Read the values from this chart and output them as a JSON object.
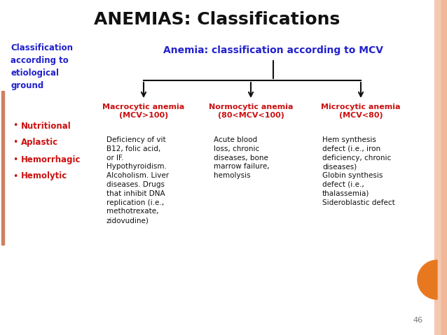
{
  "title": "ANEMIAS: Classifications",
  "title_color": "#111111",
  "title_fontsize": 18,
  "bg_color": "#ffffff",
  "slide_bg": "#ffffff",
  "left_heading": "Classification\naccording to\netiological\nground",
  "left_heading_color": "#2222cc",
  "left_bullets": [
    "Nutritional",
    "Aplastic",
    "Hemorrhagic",
    "Hemolytic"
  ],
  "left_bullet_color": "#cc1111",
  "mcv_heading": "Anemia: classification according to MCV",
  "mcv_heading_color": "#2222cc",
  "col_headings": [
    "Macrocytic anemia\n(MCV>100)",
    "Normocytic anemia\n(80<MCV<100)",
    "Microcytic anemia\n(MCV<80)"
  ],
  "col_heading_color": "#cc1111",
  "col_body": [
    "Deficiency of vit\nB12, folic acid,\nor IF.\nHypothyroidism.\nAlcoholism. Liver\ndiseases. Drugs\nthat inhibit DNA\nreplication (i.e.,\nmethotrexate,\nzidovudine)",
    "Acute blood\nloss, chronic\ndiseases, bone\nmarrow failure,\nhemolysis",
    "Hem synthesis\ndefect (i.e., iron\ndeficiency, chronic\ndiseases)\nGlobin synthesis\ndefect (i.e.,\nthalassemia)\nSideroblastic defect"
  ],
  "col_body_color": "#111111",
  "page_number": "46",
  "arrow_color": "#111111",
  "orange_color": "#e87820",
  "pink_bar_color": "#f0c0a0",
  "left_bar_color": "#d08060"
}
